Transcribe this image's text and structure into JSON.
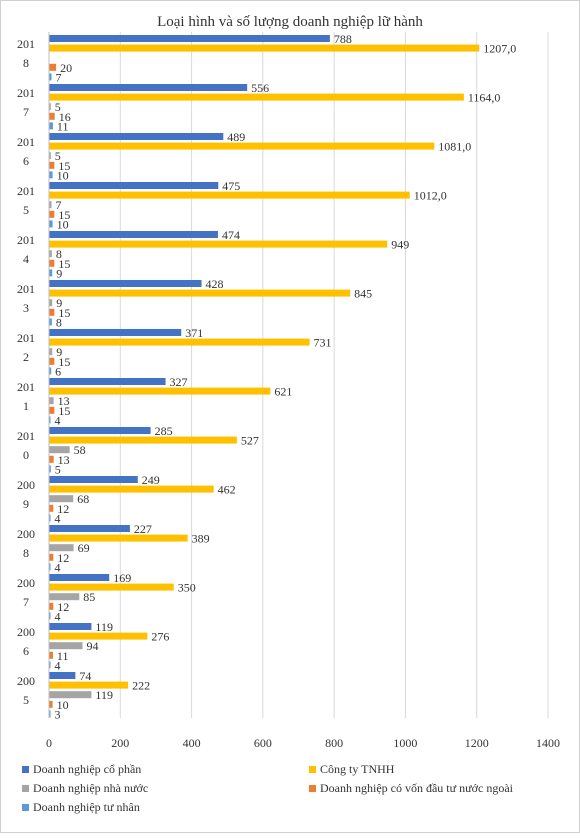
{
  "chart_data": {
    "type": "bar",
    "orientation": "horizontal",
    "title": "Loại hình và số lượng doanh nghiệp lữ hành",
    "xlabel": "",
    "ylabel": "",
    "xlim": [
      0,
      1400
    ],
    "x_ticks": [
      "0",
      "200",
      "400",
      "600",
      "800",
      "1000",
      "1200",
      "1400"
    ],
    "grid": true,
    "legend_position": "bottom",
    "categories": [
      "2018",
      "2017",
      "2016",
      "2015",
      "2014",
      "2013",
      "2012",
      "2011",
      "2010",
      "2009",
      "2008",
      "2007",
      "2006",
      "2005"
    ],
    "category_labels": [
      [
        "201",
        "8"
      ],
      [
        "201",
        "7"
      ],
      [
        "201",
        "6"
      ],
      [
        "201",
        "5"
      ],
      [
        "201",
        "4"
      ],
      [
        "201",
        "3"
      ],
      [
        "201",
        "2"
      ],
      [
        "201",
        "1"
      ],
      [
        "201",
        "0"
      ],
      [
        "200",
        "9"
      ],
      [
        "200",
        "8"
      ],
      [
        "200",
        "7"
      ],
      [
        "200",
        "6"
      ],
      [
        "200",
        "5"
      ]
    ],
    "series": [
      {
        "name": "Doanh nghiệp cổ phần",
        "color": "#4472C4",
        "values": [
          788,
          556,
          489,
          475,
          474,
          428,
          371,
          327,
          285,
          249,
          227,
          169,
          119,
          74
        ],
        "labels": [
          "788",
          "556",
          "489",
          "475",
          "474",
          "428",
          "371",
          "327",
          "285",
          "249",
          "227",
          "169",
          "119",
          "74"
        ]
      },
      {
        "name": "Công ty TNHH",
        "color": "#FFC000",
        "values": [
          1207,
          1164,
          1081,
          1012,
          949,
          845,
          731,
          621,
          527,
          462,
          389,
          350,
          276,
          222
        ],
        "labels": [
          "1207,0",
          "1164,0",
          "1081,0",
          "1012,0",
          "949",
          "845",
          "731",
          "621",
          "527",
          "462",
          "389",
          "350",
          "276",
          "222"
        ]
      },
      {
        "name": "Doanh nghiệp nhà nước",
        "color": "#A5A5A5",
        "values": [
          null,
          5,
          5,
          7,
          8,
          9,
          9,
          13,
          58,
          68,
          69,
          85,
          94,
          119
        ],
        "labels": [
          "",
          "5",
          "5",
          "7",
          "8",
          "9",
          "9",
          "13",
          "58",
          "68",
          "69",
          "85",
          "94",
          "119"
        ]
      },
      {
        "name": "Doanh nghiệp có vốn đầu tư nước ngoài",
        "color": "#ED7D31",
        "values": [
          20,
          16,
          15,
          15,
          15,
          15,
          15,
          15,
          13,
          12,
          12,
          12,
          11,
          10
        ],
        "labels": [
          "20",
          "16",
          "15",
          "15",
          "15",
          "15",
          "15",
          "15",
          "13",
          "12",
          "12",
          "12",
          "11",
          "10"
        ]
      },
      {
        "name": "Doanh nghiệp tư nhân",
        "color": "#5B9BD5",
        "values": [
          7,
          11,
          10,
          10,
          9,
          8,
          6,
          4,
          5,
          4,
          4,
          4,
          4,
          3
        ],
        "labels": [
          "7",
          "11",
          "10",
          "10",
          "9",
          "8",
          "6",
          "4",
          "5",
          "4",
          "4",
          "4",
          "4",
          "3"
        ]
      }
    ]
  }
}
